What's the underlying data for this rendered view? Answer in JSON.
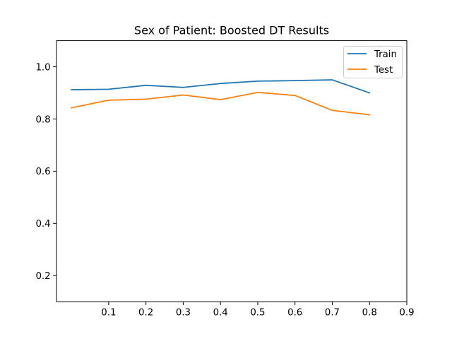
{
  "chart_data": {
    "type": "line",
    "title": "Sex of Patient: Boosted DT Results",
    "xlabel": "",
    "ylabel": "",
    "x": [
      0.0,
      0.1,
      0.2,
      0.3,
      0.4,
      0.5,
      0.6,
      0.7,
      0.8
    ],
    "series": [
      {
        "name": "Train",
        "color": "#1f77b4",
        "values": [
          0.912,
          0.914,
          0.929,
          0.921,
          0.936,
          0.945,
          0.947,
          0.95,
          0.9
        ]
      },
      {
        "name": "Test",
        "color": "#ff7f0e",
        "values": [
          0.843,
          0.872,
          0.876,
          0.892,
          0.874,
          0.902,
          0.89,
          0.833,
          0.816
        ]
      }
    ],
    "xlim": [
      -0.04,
      0.9
    ],
    "ylim": [
      0.1,
      1.1
    ],
    "xticks": [
      0.1,
      0.2,
      0.3,
      0.4,
      0.5,
      0.6,
      0.7,
      0.8,
      0.9
    ],
    "xtick_labels": [
      "0.1",
      "0.2",
      "0.3",
      "0.4",
      "0.5",
      "0.6",
      "0.7",
      "0.8",
      "0.9"
    ],
    "yticks": [
      0.2,
      0.4,
      0.6,
      0.8,
      1.0
    ],
    "ytick_labels": [
      "0.2",
      "0.4",
      "0.6",
      "0.8",
      "1.0"
    ],
    "grid": false,
    "legend": "top-right"
  }
}
